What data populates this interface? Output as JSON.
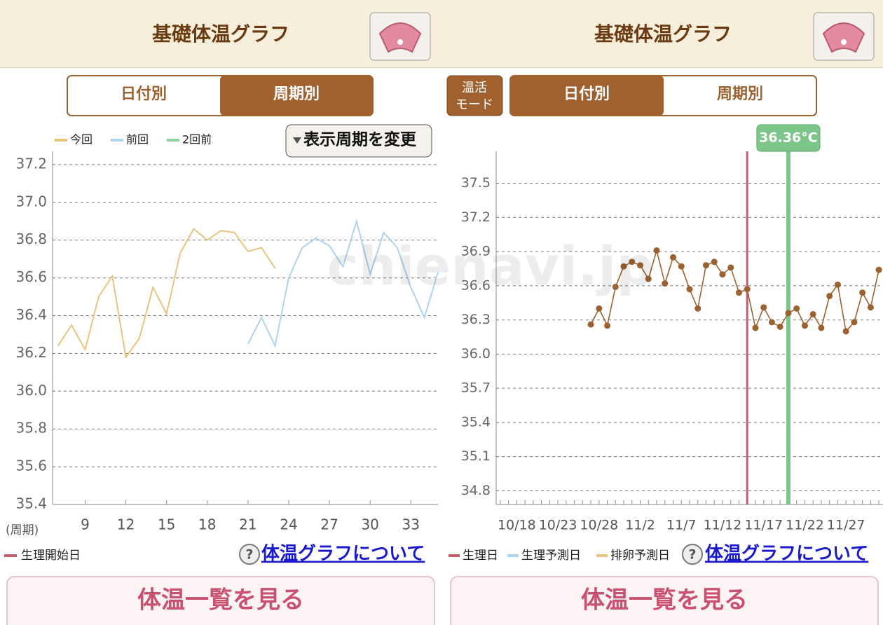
{
  "watermark": "chienavi.jp",
  "left": {
    "title": "基礎体温グラフ",
    "tabs": [
      "日付別",
      "周期別"
    ],
    "change_button": "表示周期を変更",
    "legend_item": {
      "label": "生理開始日",
      "color": "#c45a6c"
    },
    "help_icon": "?",
    "link": "体温グラフについて",
    "list_button": "体温一覧を見る"
  },
  "right": {
    "title": "基礎体温グラフ",
    "mode_button": [
      "温活",
      "モード"
    ],
    "tabs": [
      "日付別",
      "周期別"
    ],
    "legend": [
      {
        "label": "生理日",
        "color": "#c45a6c"
      },
      {
        "label": "生理予測日",
        "color": "#acd4ee"
      },
      {
        "label": "排卵予測日",
        "color": "#e9c47e"
      }
    ],
    "help_icon": "?",
    "link": "体温グラフについて",
    "list_button": "体温一覧を見る"
  },
  "chart_data": [
    {
      "type": "line",
      "xlabel": "(周期)",
      "xlim": [
        6.6,
        35
      ],
      "xticks": [
        9,
        12,
        15,
        18,
        21,
        24,
        27,
        30,
        33
      ],
      "ylim": [
        35.4,
        37.27
      ],
      "yticks": [
        35.4,
        35.6,
        35.8,
        {
          "value": 36,
          "label": "36.0"
        },
        36.2,
        36.4,
        36.6,
        36.8,
        {
          "value": 37,
          "label": "37.0"
        },
        37.2
      ],
      "grid": true,
      "series": [
        {
          "name": "今回",
          "color": "#e9c47e",
          "x": [
            7,
            8,
            9,
            10,
            11,
            12,
            13,
            14,
            15,
            16,
            17,
            18,
            19,
            20,
            21,
            22,
            23
          ],
          "values": [
            36.24,
            36.35,
            36.22,
            36.5,
            36.61,
            36.18,
            36.28,
            36.55,
            36.41,
            36.73,
            36.86,
            36.8,
            36.85,
            36.84,
            36.74,
            36.76,
            36.65
          ]
        },
        {
          "name": "前回",
          "color": "#acd4ee",
          "x": [
            21,
            22,
            23,
            24,
            25,
            26,
            27,
            28,
            29,
            30,
            31,
            32,
            33,
            34,
            35
          ],
          "values": [
            36.25,
            36.39,
            36.24,
            36.6,
            36.76,
            36.81,
            36.77,
            36.66,
            36.9,
            36.62,
            36.84,
            36.76,
            36.55,
            36.39,
            36.63
          ]
        },
        {
          "name": "2回前",
          "color": "#8fd19e",
          "x": [],
          "values": []
        }
      ]
    },
    {
      "type": "line",
      "points": true,
      "color": "#9a6230",
      "categories": [
        null,
        null,
        "10/18",
        null,
        null,
        null,
        null,
        "10/23",
        null,
        null,
        null,
        null,
        "10/28",
        null,
        null,
        null,
        null,
        "11/2",
        null,
        null,
        null,
        null,
        "11/7",
        null,
        null,
        null,
        null,
        "11/12",
        null,
        null,
        null,
        null,
        "11/17",
        null,
        null,
        null,
        null,
        "11/22",
        null,
        null,
        null,
        null,
        "11/27",
        null,
        null,
        null,
        null
      ],
      "values": [
        null,
        null,
        null,
        null,
        null,
        null,
        null,
        null,
        null,
        null,
        null,
        36.26,
        36.4,
        36.25,
        36.59,
        36.77,
        36.81,
        36.78,
        36.66,
        36.91,
        36.62,
        36.85,
        36.77,
        36.57,
        36.4,
        36.78,
        36.81,
        36.7,
        36.76,
        36.54,
        36.57,
        36.23,
        36.41,
        36.28,
        36.24,
        36.36,
        36.4,
        36.25,
        36.35,
        36.23,
        36.51,
        36.61,
        36.2,
        36.28,
        36.54,
        36.41,
        36.74
      ],
      "ylim": [
        34.68,
        37.78
      ],
      "yticks": [
        34.8,
        35.1,
        35.4,
        35.7,
        {
          "value": 36,
          "label": "36.0"
        },
        36.3,
        36.6,
        36.9,
        37.2,
        37.5
      ],
      "grid": true,
      "markers": [
        {
          "index": 30,
          "color": "#c45a6c"
        }
      ],
      "selected": {
        "index": 35,
        "value": 36.36,
        "label": "36.36°C",
        "color": "#7cc68a"
      }
    }
  ]
}
